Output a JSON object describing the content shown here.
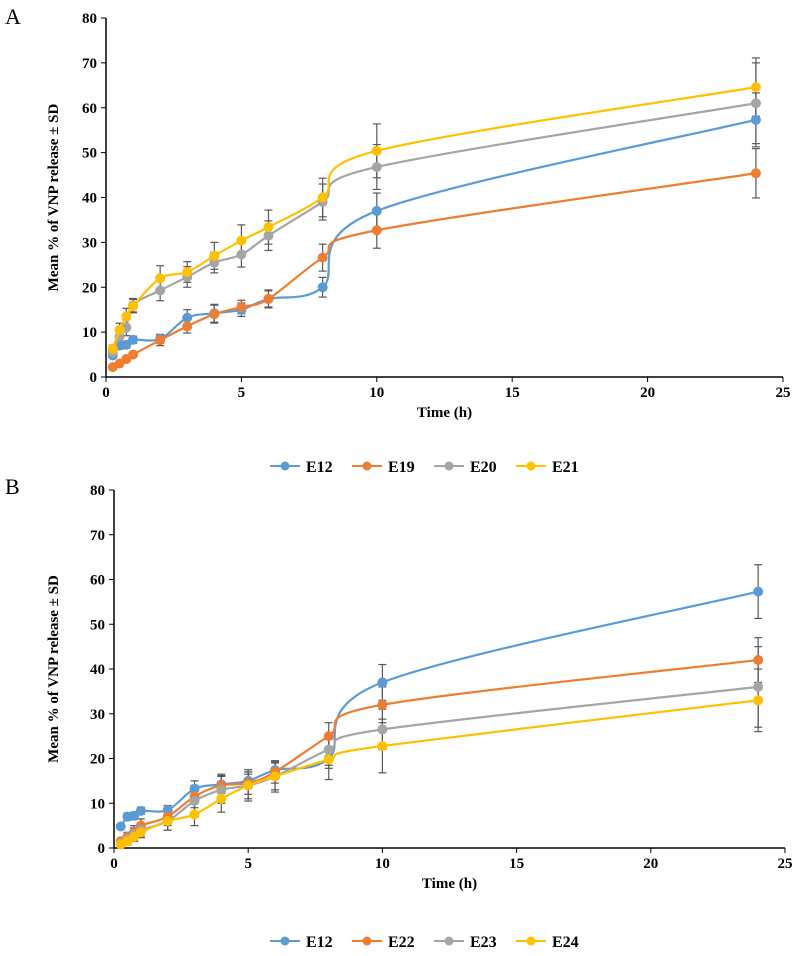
{
  "chart_data": [
    {
      "panel": "A",
      "type": "line",
      "xlabel": "Time (h)",
      "ylabel": "Mean % of VNP release ± SD",
      "xlim": [
        0,
        25
      ],
      "ylim": [
        0,
        80
      ],
      "xticks": [
        0,
        5,
        10,
        15,
        20,
        25
      ],
      "yticks": [
        0,
        10,
        20,
        30,
        40,
        50,
        60,
        70,
        80
      ],
      "grid": false,
      "legend": "bottom",
      "x": [
        0.25,
        0.5,
        0.75,
        1,
        2,
        3,
        4,
        5,
        6,
        8,
        10,
        24
      ],
      "series": [
        {
          "name": "E12",
          "color": "#5B9BD5",
          "values": [
            4.8,
            7,
            7.2,
            8.3,
            8.5,
            13.2,
            14.2,
            15,
            17.4,
            20,
            37,
            57.3
          ],
          "sd": [
            0.5,
            0.8,
            0.8,
            0.8,
            1,
            1.8,
            2,
            1.5,
            1.8,
            2.2,
            4,
            6
          ]
        },
        {
          "name": "E19",
          "color": "#ED7D31",
          "values": [
            2.2,
            3,
            4,
            5,
            8.2,
            11.3,
            14,
            15.6,
            17.4,
            26.6,
            32.7,
            45.4
          ],
          "sd": [
            0.3,
            0.4,
            0.5,
            0.5,
            1.2,
            1.5,
            2,
            1.5,
            2,
            3,
            4,
            5.5
          ]
        },
        {
          "name": "E20",
          "color": "#A5A5A5",
          "values": [
            5.5,
            9,
            11,
            16,
            19.3,
            22.3,
            25.5,
            27.3,
            31.5,
            39,
            46.8,
            61
          ],
          "sd": [
            0.8,
            1.5,
            1.8,
            1.5,
            2.3,
            2.3,
            2.3,
            2.8,
            3.3,
            4,
            5,
            9
          ]
        },
        {
          "name": "E21",
          "color": "#FFC000",
          "values": [
            6.3,
            10.5,
            13.5,
            15.8,
            22,
            23.4,
            27,
            30.4,
            33.4,
            40,
            50.4,
            64.6
          ],
          "sd": [
            0.8,
            1.5,
            1.8,
            1.5,
            2.8,
            2.3,
            3,
            3.5,
            3.8,
            4.3,
            6,
            6.5
          ]
        }
      ]
    },
    {
      "panel": "B",
      "type": "line",
      "xlabel": "Time (h)",
      "ylabel": "Mean % of VNP release ± SD",
      "xlim": [
        0,
        25
      ],
      "ylim": [
        0,
        80
      ],
      "xticks": [
        0,
        5,
        10,
        15,
        20,
        25
      ],
      "yticks": [
        0,
        10,
        20,
        30,
        40,
        50,
        60,
        70,
        80
      ],
      "grid": false,
      "legend": "bottom",
      "x": [
        0.25,
        0.5,
        0.75,
        1,
        2,
        3,
        4,
        5,
        6,
        8,
        10,
        24
      ],
      "series": [
        {
          "name": "E12",
          "color": "#5B9BD5",
          "values": [
            4.8,
            7,
            7.2,
            8.3,
            8.5,
            13.2,
            14.2,
            15,
            17.4,
            20,
            37,
            57.3
          ],
          "sd": [
            0.5,
            0.8,
            0.8,
            0.8,
            1,
            1.8,
            2,
            1.5,
            1.8,
            2.2,
            4,
            6
          ]
        },
        {
          "name": "E22",
          "color": "#ED7D31",
          "values": [
            1.5,
            2.5,
            3.5,
            5,
            7,
            11.5,
            14,
            14.5,
            17,
            25,
            32,
            42
          ],
          "sd": [
            0.5,
            1,
            1.5,
            1.5,
            2,
            2.5,
            2.5,
            2.5,
            2.5,
            3,
            4,
            5
          ]
        },
        {
          "name": "E23",
          "color": "#A5A5A5",
          "values": [
            1,
            2,
            3,
            4,
            6,
            10.5,
            13,
            14,
            16,
            22,
            26.5,
            36
          ],
          "sd": [
            0.5,
            1,
            1.5,
            1.5,
            2,
            2.5,
            3,
            3,
            3,
            3.5,
            4.5,
            9
          ]
        },
        {
          "name": "E24",
          "color": "#FFC000",
          "values": [
            0.8,
            1.5,
            2.5,
            3.5,
            6,
            7.5,
            11,
            14,
            16,
            19.8,
            22.8,
            33
          ],
          "sd": [
            0.4,
            0.8,
            1,
            1.2,
            2,
            2.5,
            3,
            3.5,
            3.5,
            4.5,
            6,
            7
          ]
        }
      ]
    }
  ]
}
